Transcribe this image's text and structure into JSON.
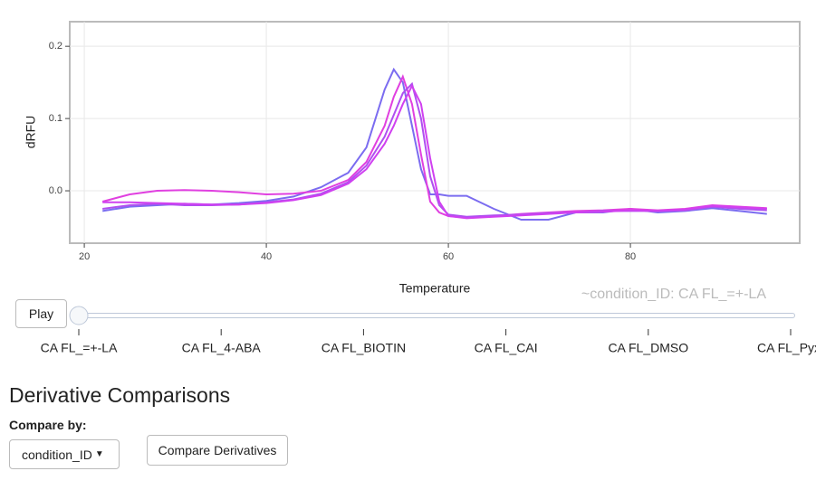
{
  "chart_data": {
    "type": "line",
    "x_label": "Temperature",
    "y_label": "dRFU",
    "x": [
      22,
      25,
      28,
      31,
      34,
      37,
      40,
      43,
      46,
      49,
      51,
      53,
      54,
      55,
      56,
      57,
      58,
      59,
      60,
      62,
      65,
      68,
      71,
      74,
      77,
      80,
      83,
      86,
      89,
      92,
      95
    ],
    "series": [
      {
        "color": "#7b6cf0",
        "values": [
          -0.028,
          -0.022,
          -0.02,
          -0.018,
          -0.019,
          -0.017,
          -0.014,
          -0.008,
          0.005,
          0.025,
          0.06,
          0.14,
          0.168,
          0.15,
          0.09,
          0.03,
          -0.005,
          -0.005,
          -0.007,
          -0.007,
          -0.025,
          -0.04,
          -0.04,
          -0.03,
          -0.03,
          -0.025,
          -0.03,
          -0.028,
          -0.024,
          -0.028,
          -0.032
        ]
      },
      {
        "color": "#e040e0",
        "values": [
          -0.015,
          -0.005,
          0.0,
          0.001,
          0.0,
          -0.002,
          -0.005,
          -0.004,
          0.0,
          0.015,
          0.04,
          0.09,
          0.13,
          0.158,
          0.12,
          0.05,
          -0.015,
          -0.03,
          -0.035,
          -0.037,
          -0.035,
          -0.032,
          -0.03,
          -0.028,
          -0.027,
          -0.025,
          -0.027,
          -0.025,
          -0.02,
          -0.022,
          -0.024
        ]
      },
      {
        "color": "#b050f0",
        "values": [
          -0.025,
          -0.02,
          -0.018,
          -0.02,
          -0.02,
          -0.019,
          -0.016,
          -0.012,
          -0.004,
          0.012,
          0.035,
          0.075,
          0.105,
          0.135,
          0.148,
          0.1,
          0.02,
          -0.02,
          -0.033,
          -0.036,
          -0.034,
          -0.033,
          -0.031,
          -0.03,
          -0.028,
          -0.028,
          -0.028,
          -0.027,
          -0.022,
          -0.025,
          -0.027
        ]
      },
      {
        "color": "#d040f0",
        "values": [
          -0.016,
          -0.016,
          -0.017,
          -0.018,
          -0.019,
          -0.019,
          -0.017,
          -0.013,
          -0.006,
          0.01,
          0.03,
          0.065,
          0.09,
          0.12,
          0.145,
          0.12,
          0.045,
          -0.015,
          -0.035,
          -0.038,
          -0.036,
          -0.034,
          -0.032,
          -0.03,
          -0.029,
          -0.027,
          -0.028,
          -0.026,
          -0.021,
          -0.023,
          -0.025
        ]
      }
    ],
    "xlim": [
      18.4,
      98.6
    ],
    "xticks": [
      20,
      40,
      60,
      80
    ],
    "ylim": [
      -0.0725,
      0.234
    ],
    "yticks": [
      {
        "value": 0,
        "label": "0.0"
      },
      0.1,
      0.2
    ],
    "grid": true
  },
  "slider": {
    "play": "Play",
    "currentvalue": "~condition_ID: CA FL_=+-LA",
    "steps": [
      "CA FL_=+-LA",
      "CA FL_4-ABA",
      "CA FL_BIOTIN",
      "CA FL_CAI",
      "CA FL_DMSO",
      "CA FL_PyxI"
    ]
  },
  "section": {
    "title": "Derivative Comparisons",
    "compare_label": "Compare by:",
    "select": "condition_ID",
    "button": "Compare Derivatives"
  }
}
